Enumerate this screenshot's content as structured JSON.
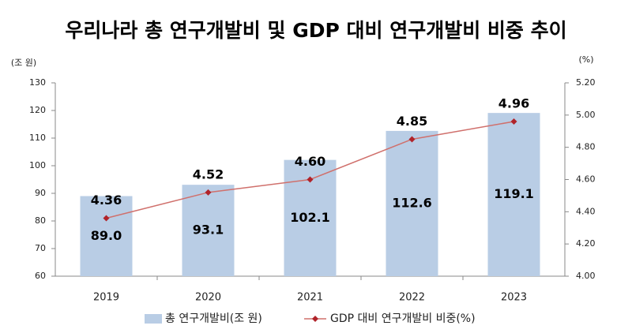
{
  "chart_data": {
    "type": "bar",
    "title": "우리나라 총 연구개발비 및 GDP 대비 연구개발비 비중 추이",
    "y_unit": "(조 원)",
    "y2_unit": "(%)",
    "categories": [
      "2019",
      "2020",
      "2021",
      "2022",
      "2023"
    ],
    "series": [
      {
        "name": "총 연구개발비(조 원)",
        "type": "bar",
        "color": "#b9cde5",
        "values": [
          89.0,
          93.1,
          102.1,
          112.6,
          119.1
        ],
        "value_labels": [
          "89.0",
          "93.1",
          "102.1",
          "112.6",
          "119.1"
        ]
      },
      {
        "name": "GDP 대비 연구개발비 비중(%)",
        "type": "line",
        "axis": "y2",
        "color": "#d0706c",
        "marker_color": "#b0232a",
        "values": [
          4.36,
          4.52,
          4.6,
          4.85,
          4.96
        ],
        "value_labels": [
          "4.36",
          "4.52",
          "4.60",
          "4.85",
          "4.96"
        ]
      }
    ],
    "ylim": [
      60,
      130
    ],
    "yticks": [
      60,
      70,
      80,
      90,
      100,
      110,
      120,
      130
    ],
    "y2lim": [
      4.0,
      5.2
    ],
    "y2ticks": [
      {
        "value": 4.0,
        "label": "4.00"
      },
      {
        "value": 4.2,
        "label": "4.20"
      },
      {
        "value": 4.4,
        "label": "4.40"
      },
      {
        "value": 4.6,
        "label": "4.60"
      },
      {
        "value": 4.8,
        "label": "4.80"
      },
      {
        "value": 5.0,
        "label": "5.00"
      },
      {
        "value": 5.2,
        "label": "5.20"
      }
    ],
    "grid": false
  }
}
